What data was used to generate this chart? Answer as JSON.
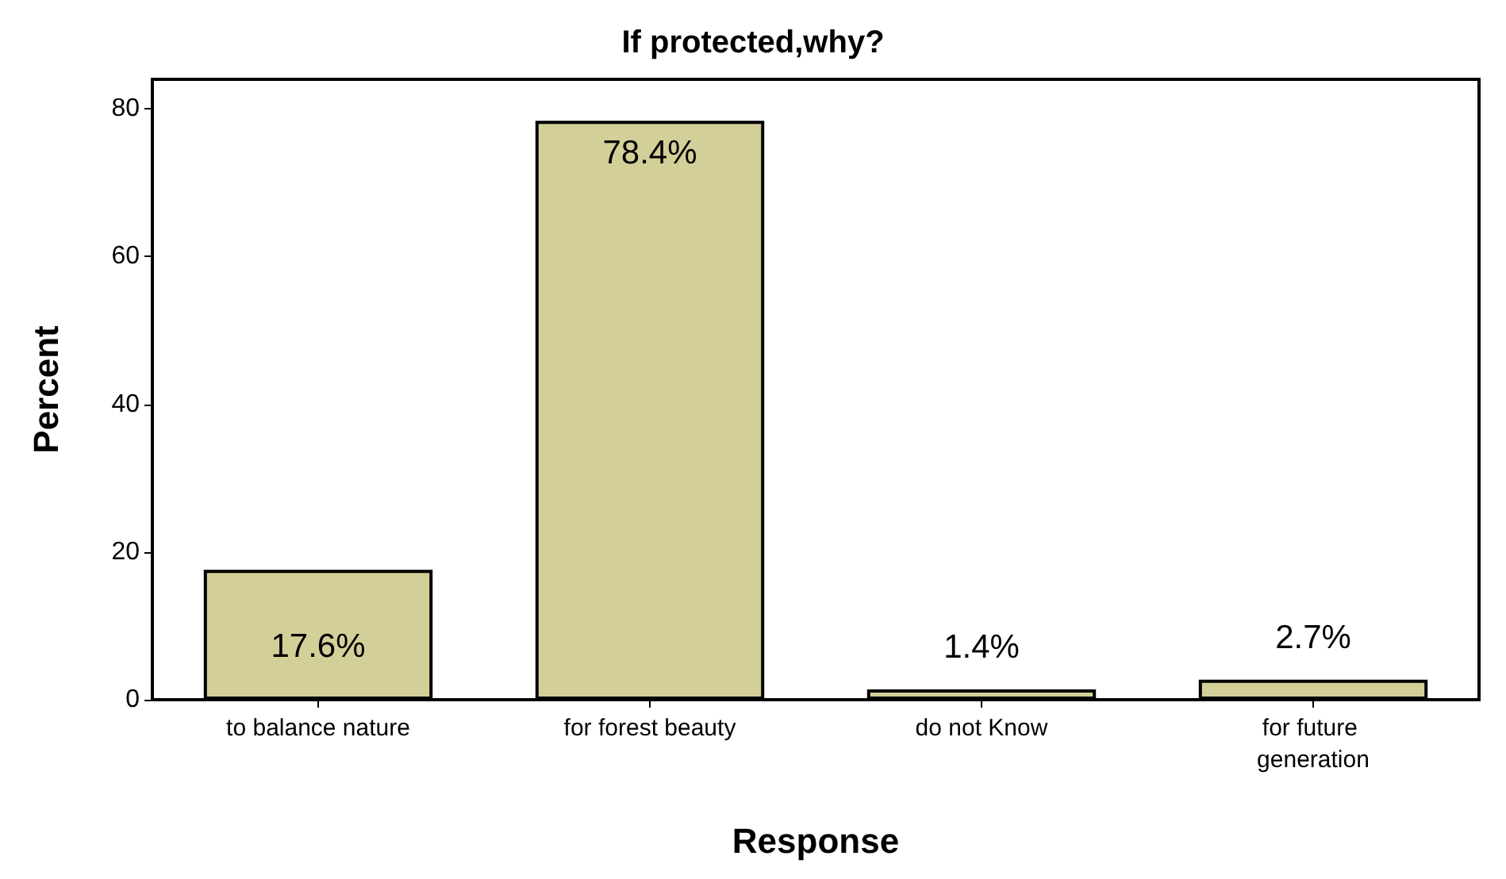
{
  "chart_data": {
    "type": "bar",
    "title": "If protected,why?",
    "xlabel": "Response",
    "ylabel": "Percent",
    "categories": [
      "to balance nature",
      "for forest beauty",
      "do not Know",
      "for future generation"
    ],
    "values": [
      17.6,
      78.4,
      1.4,
      2.7
    ],
    "value_labels": [
      "17.6%",
      "78.4%",
      "1.4%",
      "2.7%"
    ],
    "color": "#d3cf98",
    "ylim": [
      0,
      84
    ],
    "yticks": [
      0,
      20,
      40,
      60,
      80
    ],
    "grid": false
  }
}
